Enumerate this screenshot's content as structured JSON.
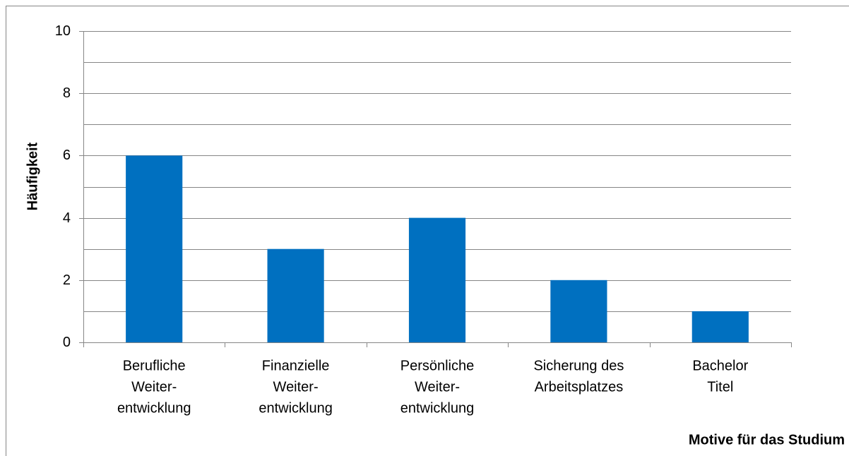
{
  "chart_data": {
    "type": "bar",
    "x_label": "Motive für das Studium",
    "y_label": "Häufigkeit",
    "categories": [
      [
        "Berufliche",
        "Weiter-",
        "entwicklung"
      ],
      [
        "Finanzielle",
        "Weiter-",
        "entwicklung"
      ],
      [
        "Persönliche",
        "Weiter-",
        "entwicklung"
      ],
      [
        "Sicherung des",
        "Arbeitsplatzes"
      ],
      [
        "Bachelor",
        "Titel"
      ]
    ],
    "values": [
      6,
      3,
      4,
      2,
      1
    ],
    "color": "#0070c0",
    "ylim": [
      0,
      10
    ],
    "yticks": [
      0,
      2,
      4,
      6,
      8,
      10
    ],
    "minor_yticks": [
      1,
      3,
      5,
      7,
      9
    ],
    "grid": true
  }
}
